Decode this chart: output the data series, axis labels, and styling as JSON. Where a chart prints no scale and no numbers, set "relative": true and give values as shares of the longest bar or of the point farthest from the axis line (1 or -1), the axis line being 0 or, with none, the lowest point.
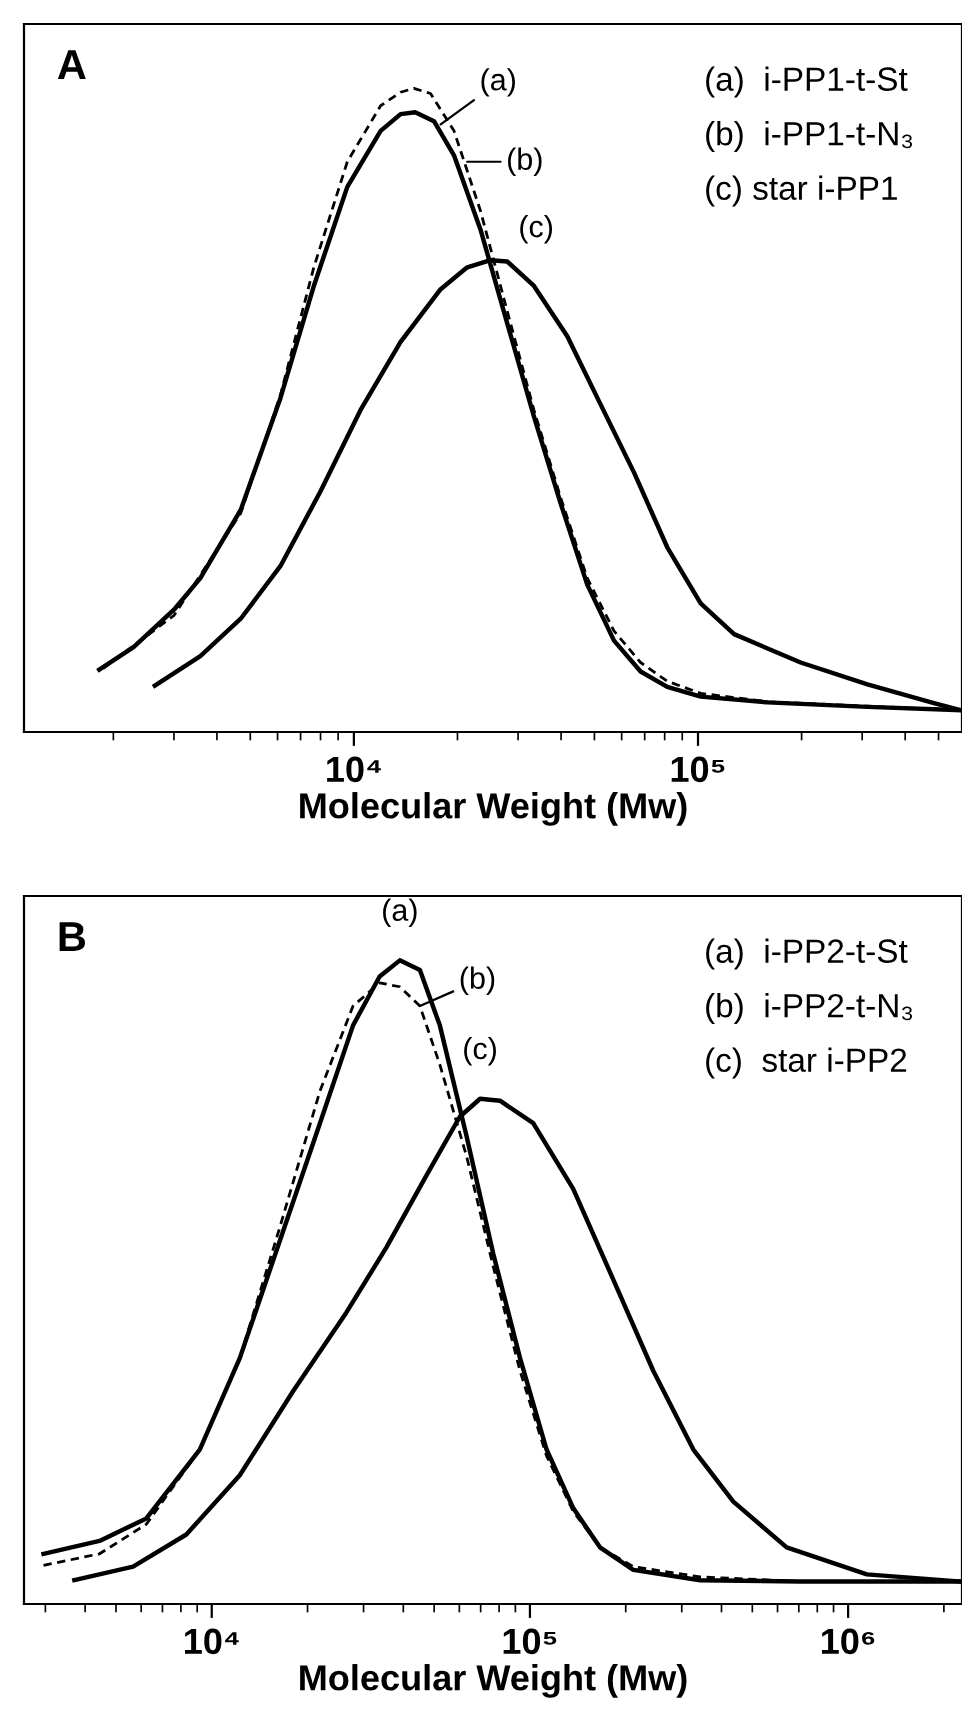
{
  "chart_data": [
    {
      "type": "line",
      "title": "A",
      "xlabel": "Molecular Weight (Mw)",
      "relative": true,
      "log": "x",
      "grid": false,
      "xlim": [
        1100,
        585000
      ],
      "xticks": [
        {
          "value": 10000,
          "label": "10⁴"
        },
        {
          "value": 100000,
          "label": "10⁵"
        }
      ],
      "series": [
        {
          "color": "#000000",
          "line_style": "solid",
          "x": [
            1820,
            2290,
            3000,
            3580,
            4690,
            6120,
            7650,
            9570,
            11960,
            13670,
            15070,
            17090,
            19540,
            23350,
            27900,
            33370,
            39900,
            47660,
            57000,
            68100,
            81400,
            101800,
            159200,
            310700,
            580000
          ],
          "values": [
            0.097,
            0.132,
            0.19,
            0.239,
            0.345,
            0.519,
            0.693,
            0.847,
            0.934,
            0.96,
            0.963,
            0.949,
            0.896,
            0.78,
            0.635,
            0.49,
            0.355,
            0.229,
            0.142,
            0.094,
            0.07,
            0.055,
            0.046,
            0.039,
            0.034
          ]
        },
        {
          "color": "#000000",
          "line_style": "dashed",
          "x": [
            1870,
            3000,
            4690,
            6120,
            7650,
            9570,
            11960,
            13670,
            14940,
            16700,
            19540,
            23350,
            27900,
            33370,
            39900,
            47660,
            57000,
            68100,
            81400,
            101800,
            159200,
            310700,
            580000
          ],
          "values": [
            0.099,
            0.181,
            0.34,
            0.524,
            0.722,
            0.886,
            0.973,
            0.994,
            1,
            0.992,
            0.934,
            0.809,
            0.654,
            0.5,
            0.364,
            0.239,
            0.157,
            0.108,
            0.079,
            0.06,
            0.047,
            0.04,
            0.034
          ]
        },
        {
          "color": "#000000",
          "line_style": "solid",
          "x": [
            2640,
            3580,
            4690,
            6120,
            8000,
            10450,
            13670,
            17870,
            21350,
            24950,
            27900,
            33370,
            41700,
            52100,
            65200,
            81400,
            101800,
            127300,
            198700,
            310700,
            485000,
            580000
          ],
          "values": [
            0.072,
            0.118,
            0.176,
            0.258,
            0.374,
            0.5,
            0.606,
            0.688,
            0.722,
            0.733,
            0.731,
            0.693,
            0.615,
            0.509,
            0.403,
            0.287,
            0.2,
            0.152,
            0.108,
            0.074,
            0.045,
            0.034
          ]
        }
      ],
      "annotations": [
        {
          "text": "(a)",
          "x": 17870,
          "y": 0.944
        },
        {
          "text": "(b)",
          "x": 21350,
          "y": 0.886
        },
        {
          "text": "(c)",
          "x": 24950,
          "y": 0.733
        },
        "(a)  i-PP1-t-St",
        "(b)  i-PP1-t-N₃",
        "(c) star i-PP1"
      ]
    },
    {
      "type": "line",
      "title": "B",
      "xlabel": "Molecular Weight (Mw)",
      "relative": true,
      "log": "x",
      "grid": false,
      "xlim": [
        2570,
        2280000
      ],
      "xticks": [
        {
          "value": 10000,
          "label": "10⁴"
        },
        {
          "value": 100000,
          "label": "10⁵"
        },
        {
          "value": 1000000,
          "label": "10⁶"
        }
      ],
      "series": [
        {
          "color": "#000000",
          "line_style": "solid",
          "x": [
            2960,
            4440,
            6230,
            9170,
            12250,
            16360,
            21880,
            27800,
            33700,
            39000,
            45100,
            52100,
            63200,
            76700,
            93100,
            112800,
            136800,
            166000,
            211300,
            342700,
            706000,
            2250000
          ],
          "values": [
            0.078,
            0.098,
            0.133,
            0.24,
            0.382,
            0.564,
            0.747,
            0.899,
            0.975,
            1,
            0.985,
            0.899,
            0.727,
            0.544,
            0.382,
            0.24,
            0.149,
            0.088,
            0.053,
            0.037,
            0.035,
            0.035
          ]
        },
        {
          "color": "#000000",
          "line_style": "dashed",
          "x": [
            2960,
            4440,
            6230,
            9170,
            12250,
            16360,
            21880,
            27800,
            33700,
            39000,
            45100,
            52100,
            63200,
            76700,
            93100,
            112800,
            136800,
            166000,
            211300,
            342700,
            706000,
            2250000
          ],
          "values": [
            0.06,
            0.078,
            0.124,
            0.24,
            0.382,
            0.585,
            0.797,
            0.929,
            0.965,
            0.959,
            0.929,
            0.838,
            0.696,
            0.524,
            0.362,
            0.23,
            0.144,
            0.088,
            0.058,
            0.042,
            0.035,
            0.035
          ]
        },
        {
          "color": "#000000",
          "line_style": "solid",
          "x": [
            3700,
            5660,
            8320,
            12250,
            18030,
            26500,
            35400,
            47300,
            60200,
            69700,
            80500,
            102400,
            136800,
            182800,
            244300,
            326300,
            435700,
            641000,
            1145000,
            2250000
          ],
          "values": [
            0.037,
            0.058,
            0.108,
            0.2,
            0.331,
            0.453,
            0.554,
            0.666,
            0.757,
            0.785,
            0.782,
            0.747,
            0.645,
            0.504,
            0.362,
            0.24,
            0.159,
            0.088,
            0.046,
            0.035
          ]
        }
      ],
      "annotations": [
        {
          "text": "(a)",
          "x": 39000,
          "y": 1
        },
        {
          "text": "(b)",
          "x": 45100,
          "y": 0.929
        },
        {
          "text": "(c)",
          "x": 69700,
          "y": 0.785
        },
        "(a)  i-PP2-t-St",
        "(b)  i-PP2-t-N₃",
        "(c)  star i-PP2"
      ]
    }
  ]
}
